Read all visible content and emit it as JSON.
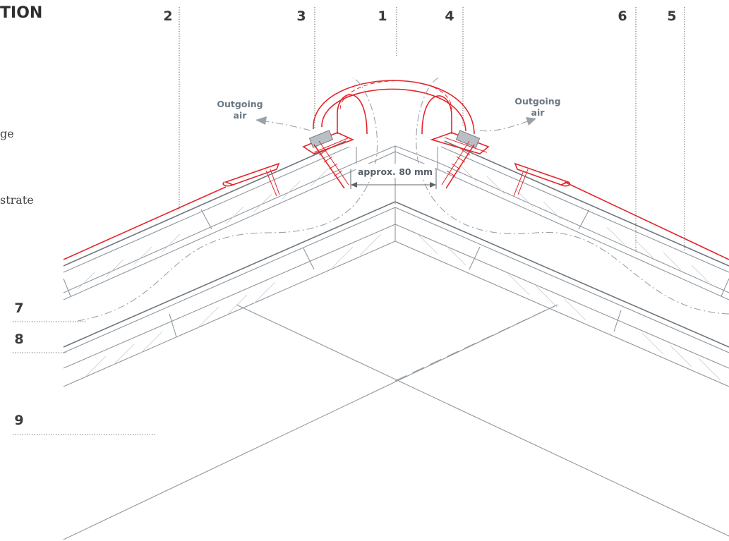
{
  "title_fragment": "TION",
  "text_fragments": [
    "ge",
    "strate"
  ],
  "callouts": [
    {
      "id": "1",
      "label": "1"
    },
    {
      "id": "2",
      "label": "2"
    },
    {
      "id": "3",
      "label": "3"
    },
    {
      "id": "4",
      "label": "4"
    },
    {
      "id": "5",
      "label": "5"
    },
    {
      "id": "6",
      "label": "6"
    },
    {
      "id": "7",
      "label": "7"
    },
    {
      "id": "8",
      "label": "8"
    },
    {
      "id": "9",
      "label": "9"
    }
  ],
  "airflow_labels": {
    "left": [
      "Outgoing",
      "air"
    ],
    "right": [
      "Outgoing",
      "air"
    ]
  },
  "dimension_label": "approx. 80 mm",
  "colors": {
    "accent_red": "#e3262b",
    "structure_grey": "#8f979e",
    "text_dark": "#3a3a3a"
  }
}
